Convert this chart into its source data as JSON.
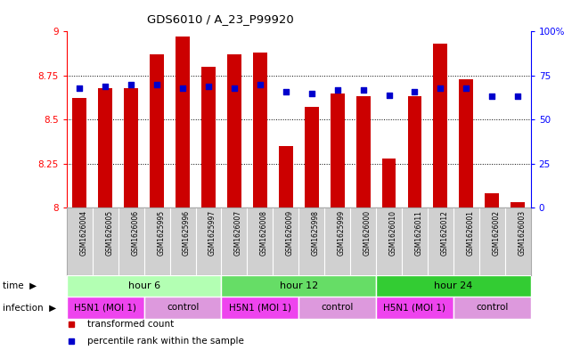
{
  "title": "GDS6010 / A_23_P99920",
  "samples": [
    "GSM1626004",
    "GSM1626005",
    "GSM1626006",
    "GSM1625995",
    "GSM1625996",
    "GSM1625997",
    "GSM1626007",
    "GSM1626008",
    "GSM1626009",
    "GSM1625998",
    "GSM1625999",
    "GSM1626000",
    "GSM1626010",
    "GSM1626011",
    "GSM1626012",
    "GSM1626001",
    "GSM1626002",
    "GSM1626003"
  ],
  "transformed_counts": [
    8.62,
    8.68,
    8.68,
    8.87,
    8.97,
    8.8,
    8.87,
    8.88,
    8.35,
    8.57,
    8.65,
    8.63,
    8.28,
    8.63,
    8.93,
    8.73,
    8.08,
    8.03
  ],
  "percentile_ranks": [
    68,
    69,
    70,
    70,
    68,
    69,
    68,
    70,
    66,
    65,
    67,
    67,
    64,
    66,
    68,
    68,
    63,
    63
  ],
  "ylim_left": [
    8.0,
    9.0
  ],
  "ylim_right": [
    0,
    100
  ],
  "yticks_left": [
    8.0,
    8.25,
    8.5,
    8.75,
    9.0
  ],
  "yticks_right": [
    0,
    25,
    50,
    75,
    100
  ],
  "ytick_labels_left": [
    "8",
    "8.25",
    "8.5",
    "8.75",
    "9"
  ],
  "ytick_labels_right": [
    "0",
    "25",
    "50",
    "75",
    "100%"
  ],
  "bar_color": "#cc0000",
  "dot_color": "#0000cc",
  "bar_bottom": 8.0,
  "time_groups": [
    {
      "label": "hour 6",
      "start": 0,
      "end": 6,
      "color": "#b3ffb3"
    },
    {
      "label": "hour 12",
      "start": 6,
      "end": 12,
      "color": "#66dd66"
    },
    {
      "label": "hour 24",
      "start": 12,
      "end": 18,
      "color": "#33cc33"
    }
  ],
  "infection_groups": [
    {
      "label": "H5N1 (MOI 1)",
      "start": 0,
      "end": 3,
      "color": "#ee44ee"
    },
    {
      "label": "control",
      "start": 3,
      "end": 6,
      "color": "#dd99dd"
    },
    {
      "label": "H5N1 (MOI 1)",
      "start": 6,
      "end": 9,
      "color": "#ee44ee"
    },
    {
      "label": "control",
      "start": 9,
      "end": 12,
      "color": "#dd99dd"
    },
    {
      "label": "H5N1 (MOI 1)",
      "start": 12,
      "end": 15,
      "color": "#ee44ee"
    },
    {
      "label": "control",
      "start": 15,
      "end": 18,
      "color": "#dd99dd"
    }
  ],
  "time_label": "time",
  "infection_label": "infection",
  "legend_items": [
    {
      "label": "transformed count",
      "color": "#cc0000"
    },
    {
      "label": "percentile rank within the sample",
      "color": "#0000cc"
    }
  ],
  "label_bg_color": "#d0d0d0",
  "label_border_color": "#aaaaaa"
}
